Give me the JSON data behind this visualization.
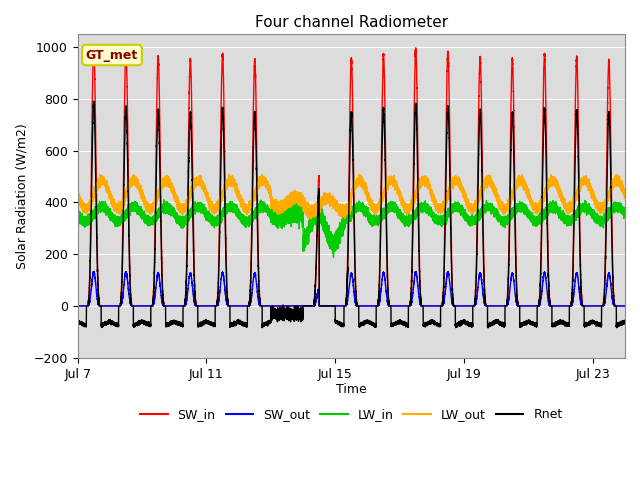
{
  "title": "Four channel Radiometer",
  "xlabel": "Time",
  "ylabel": "Solar Radiation (W/m2)",
  "ylim": [
    -200,
    1050
  ],
  "x_tick_labels": [
    "Jul 7",
    "Jul 11",
    "Jul 15",
    "Jul 19",
    "Jul 23"
  ],
  "x_tick_positions": [
    0,
    4,
    8,
    12,
    16
  ],
  "background_color": "#e8e8e8",
  "plot_bg_color": "#dcdcdc",
  "legend_label": "GT_met",
  "legend_box_color": "#ffffcc",
  "legend_box_edge": "#cccc00",
  "series": {
    "SW_in": {
      "color": "#ff0000",
      "lw": 1.0
    },
    "SW_out": {
      "color": "#0000ff",
      "lw": 1.0
    },
    "LW_in": {
      "color": "#00cc00",
      "lw": 1.0
    },
    "LW_out": {
      "color": "#ffaa00",
      "lw": 1.0
    },
    "Rnet": {
      "color": "#000000",
      "lw": 1.0
    }
  },
  "n_days": 17,
  "pts_per_day": 1440,
  "SW_in_peak": 980,
  "SW_out_peak": 130,
  "LW_in_base": 355,
  "LW_in_amp": 28,
  "LW_out_base": 430,
  "LW_out_amp": 55,
  "Rnet_peak": 770,
  "Rnet_trough": -75
}
